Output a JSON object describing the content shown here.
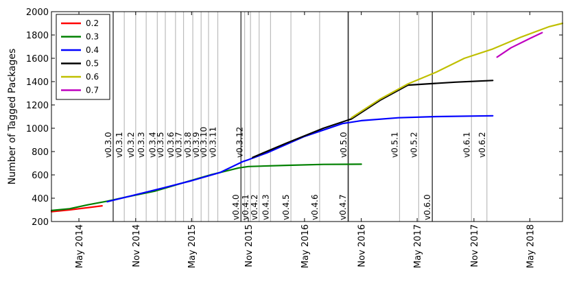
{
  "chart_data": {
    "type": "line",
    "title": "",
    "xlabel": "",
    "ylabel": "Number of Tagged Packages",
    "ylim": [
      200,
      2000
    ],
    "xlim": [
      "2014-02-01",
      "2018-08-15"
    ],
    "yticks": [
      200,
      400,
      600,
      800,
      1000,
      1200,
      1400,
      1600,
      1800,
      2000
    ],
    "xticks": [
      {
        "label": "May 2014",
        "date": "2014-05-01"
      },
      {
        "label": "Nov 2014",
        "date": "2014-11-01"
      },
      {
        "label": "May 2015",
        "date": "2015-05-01"
      },
      {
        "label": "Nov 2015",
        "date": "2015-11-01"
      },
      {
        "label": "May 2016",
        "date": "2016-05-01"
      },
      {
        "label": "Nov 2016",
        "date": "2016-11-01"
      },
      {
        "label": "May 2017",
        "date": "2017-05-01"
      },
      {
        "label": "Nov 2017",
        "date": "2017-11-01"
      },
      {
        "label": "May 2018",
        "date": "2018-05-01"
      }
    ],
    "legend": {
      "placement": "top-left"
    },
    "grid": false,
    "series": [
      {
        "name": "0.2",
        "color": "#ff0000",
        "x": [
          "2014-02-01",
          "2014-04-01",
          "2014-06-01",
          "2014-07-15"
        ],
        "y": [
          285,
          300,
          320,
          335
        ]
      },
      {
        "name": "0.3",
        "color": "#008000",
        "x": [
          "2014-02-01",
          "2014-04-01",
          "2014-06-01",
          "2014-08-01",
          "2014-10-01",
          "2015-01-01",
          "2015-04-01",
          "2015-07-01",
          "2015-10-01",
          "2015-11-01",
          "2016-03-01",
          "2016-07-01",
          "2016-11-01"
        ],
        "y": [
          295,
          310,
          345,
          375,
          410,
          460,
          530,
          600,
          660,
          672,
          682,
          690,
          692
        ]
      },
      {
        "name": "0.4",
        "color": "#0000ff",
        "x": [
          "2014-08-01",
          "2014-11-01",
          "2015-02-01",
          "2015-05-01",
          "2015-08-01",
          "2015-10-15",
          "2015-11-01",
          "2016-01-01",
          "2016-05-01",
          "2016-09-01",
          "2016-11-01",
          "2017-03-01",
          "2017-07-01",
          "2017-11-01",
          "2018-01-01"
        ],
        "y": [
          370,
          430,
          490,
          550,
          620,
          715,
          730,
          790,
          930,
          1040,
          1065,
          1090,
          1100,
          1105,
          1107
        ]
      },
      {
        "name": "0.5",
        "color": "#000000",
        "x": [
          "2015-11-15",
          "2016-03-01",
          "2016-07-01",
          "2016-09-30",
          "2017-01-01",
          "2017-04-01",
          "2017-09-01",
          "2018-01-01"
        ],
        "y": [
          750,
          870,
          1000,
          1080,
          1240,
          1370,
          1395,
          1410
        ]
      },
      {
        "name": "0.6",
        "color": "#bfbf00",
        "x": [
          "2016-09-30",
          "2017-01-01",
          "2017-04-01",
          "2017-07-01",
          "2017-10-01",
          "2018-01-01",
          "2018-04-01",
          "2018-07-01",
          "2018-08-15"
        ],
        "y": [
          1090,
          1250,
          1380,
          1480,
          1600,
          1680,
          1780,
          1870,
          1900
        ]
      },
      {
        "name": "0.7",
        "color": "#bf00bf",
        "x": [
          "2018-01-15",
          "2018-03-01",
          "2018-05-01",
          "2018-06-10"
        ],
        "y": [
          1610,
          1690,
          1770,
          1820
        ]
      }
    ],
    "releases": [
      {
        "label": "v0.3.0",
        "date": "2014-08-20",
        "major": true,
        "position": "top"
      },
      {
        "label": "v0.3.1",
        "date": "2014-09-25",
        "major": false,
        "position": "top"
      },
      {
        "label": "v0.3.2",
        "date": "2014-11-01",
        "major": false,
        "position": "top"
      },
      {
        "label": "v0.3.3",
        "date": "2014-12-05",
        "major": false,
        "position": "top"
      },
      {
        "label": "v0.3.4",
        "date": "2015-01-10",
        "major": false,
        "position": "top"
      },
      {
        "label": "v0.3.5",
        "date": "2015-02-05",
        "major": false,
        "position": "top"
      },
      {
        "label": "v0.3.6",
        "date": "2015-03-10",
        "major": false,
        "position": "top"
      },
      {
        "label": "v0.3.7",
        "date": "2015-04-05",
        "major": false,
        "position": "top"
      },
      {
        "label": "v0.3.8",
        "date": "2015-05-05",
        "major": false,
        "position": "top"
      },
      {
        "label": "v0.3.9",
        "date": "2015-06-01",
        "major": false,
        "position": "top"
      },
      {
        "label": "v0.3.10",
        "date": "2015-06-25",
        "major": false,
        "position": "top"
      },
      {
        "label": "v0.3.11",
        "date": "2015-07-25",
        "major": false,
        "position": "top"
      },
      {
        "label": "v0.3.12",
        "date": "2015-10-20",
        "major": false,
        "position": "top"
      },
      {
        "label": "v0.4.0",
        "date": "2015-10-08",
        "major": true,
        "position": "bottom"
      },
      {
        "label": "v0.4.1",
        "date": "2015-11-08",
        "major": false,
        "position": "bottom"
      },
      {
        "label": "v0.4.2",
        "date": "2015-12-06",
        "major": false,
        "position": "bottom"
      },
      {
        "label": "v0.4.3",
        "date": "2016-01-12",
        "major": false,
        "position": "bottom"
      },
      {
        "label": "v0.4.5",
        "date": "2016-03-18",
        "major": false,
        "position": "bottom"
      },
      {
        "label": "v0.4.6",
        "date": "2016-06-19",
        "major": false,
        "position": "bottom"
      },
      {
        "label": "v0.4.7",
        "date": "2016-09-18",
        "major": false,
        "position": "bottom"
      },
      {
        "label": "v0.5.0",
        "date": "2016-09-20",
        "major": true,
        "position": "top"
      },
      {
        "label": "v0.5.1",
        "date": "2017-03-05",
        "major": false,
        "position": "top"
      },
      {
        "label": "v0.5.2",
        "date": "2017-05-06",
        "major": false,
        "position": "top"
      },
      {
        "label": "v0.6.0",
        "date": "2017-06-19",
        "major": true,
        "position": "bottom"
      },
      {
        "label": "v0.6.1",
        "date": "2017-10-24",
        "major": false,
        "position": "top"
      },
      {
        "label": "v0.6.2",
        "date": "2017-12-13",
        "major": false,
        "position": "top"
      }
    ]
  }
}
